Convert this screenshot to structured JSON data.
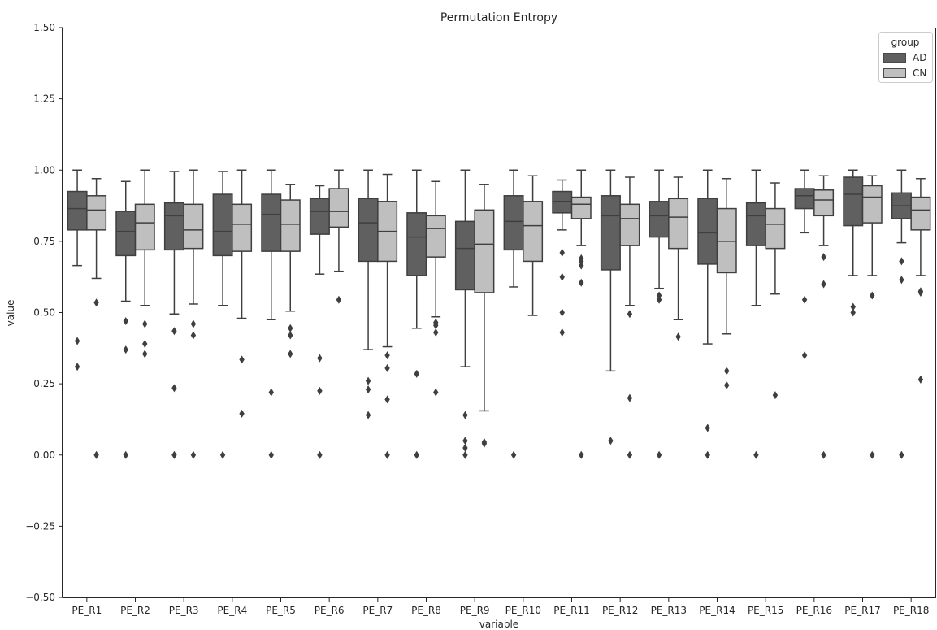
{
  "chart_data": {
    "type": "boxplot",
    "title": "Permutation Entropy",
    "xlabel": "variable",
    "ylabel": "value",
    "ylim": [
      -0.5,
      1.5
    ],
    "yticks": [
      "−0.50",
      "−0.25",
      "0.00",
      "0.25",
      "0.50",
      "0.75",
      "1.00",
      "1.25",
      "1.50"
    ],
    "ytick_values": [
      -0.5,
      -0.25,
      0,
      0.25,
      0.5,
      0.75,
      1.0,
      1.25,
      1.5
    ],
    "grid": false,
    "legend": {
      "title": "group",
      "placement": "top-right"
    },
    "categories": [
      "PE_R1",
      "PE_R2",
      "PE_R3",
      "PE_R4",
      "PE_R5",
      "PE_R6",
      "PE_R7",
      "PE_R8",
      "PE_R9",
      "PE_R10",
      "PE_R11",
      "PE_R12",
      "PE_R13",
      "PE_R14",
      "PE_R15",
      "PE_R16",
      "PE_R17",
      "PE_R18"
    ],
    "series": [
      {
        "name": "AD",
        "color": "#606060",
        "boxes": [
          {
            "q1": 0.79,
            "median": 0.865,
            "q3": 0.925,
            "whislo": 0.665,
            "whishi": 1.0,
            "fliers": [
              0.4,
              0.31
            ]
          },
          {
            "q1": 0.7,
            "median": 0.785,
            "q3": 0.855,
            "whislo": 0.54,
            "whishi": 0.96,
            "fliers": [
              0.47,
              0.37,
              0.0
            ]
          },
          {
            "q1": 0.72,
            "median": 0.84,
            "q3": 0.885,
            "whislo": 0.495,
            "whishi": 0.995,
            "fliers": [
              0.435,
              0.235,
              0.0
            ]
          },
          {
            "q1": 0.7,
            "median": 0.785,
            "q3": 0.915,
            "whislo": 0.525,
            "whishi": 0.995,
            "fliers": [
              0.0
            ]
          },
          {
            "q1": 0.715,
            "median": 0.845,
            "q3": 0.915,
            "whislo": 0.475,
            "whishi": 1.0,
            "fliers": [
              0.22,
              0.0
            ]
          },
          {
            "q1": 0.775,
            "median": 0.855,
            "q3": 0.9,
            "whislo": 0.635,
            "whishi": 0.945,
            "fliers": [
              0.34,
              0.225,
              0.0
            ]
          },
          {
            "q1": 0.68,
            "median": 0.815,
            "q3": 0.9,
            "whislo": 0.37,
            "whishi": 1.0,
            "fliers": [
              0.26,
              0.23,
              0.14
            ]
          },
          {
            "q1": 0.63,
            "median": 0.765,
            "q3": 0.85,
            "whislo": 0.445,
            "whishi": 1.0,
            "fliers": [
              0.285,
              0.0
            ]
          },
          {
            "q1": 0.58,
            "median": 0.725,
            "q3": 0.82,
            "whislo": 0.31,
            "whishi": 1.0,
            "fliers": [
              0.14,
              0.05,
              0.025,
              0.0
            ]
          },
          {
            "q1": 0.72,
            "median": 0.82,
            "q3": 0.91,
            "whislo": 0.59,
            "whishi": 1.0,
            "fliers": [
              0.0
            ]
          },
          {
            "q1": 0.85,
            "median": 0.89,
            "q3": 0.925,
            "whislo": 0.79,
            "whishi": 0.965,
            "fliers": [
              0.71,
              0.625,
              0.5,
              0.43
            ]
          },
          {
            "q1": 0.65,
            "median": 0.84,
            "q3": 0.91,
            "whislo": 0.295,
            "whishi": 1.0,
            "fliers": [
              0.05
            ]
          },
          {
            "q1": 0.765,
            "median": 0.84,
            "q3": 0.89,
            "whislo": 0.585,
            "whishi": 1.0,
            "fliers": [
              0.56,
              0.545,
              0.0
            ]
          },
          {
            "q1": 0.67,
            "median": 0.78,
            "q3": 0.9,
            "whislo": 0.39,
            "whishi": 1.0,
            "fliers": [
              0.095,
              0.0
            ]
          },
          {
            "q1": 0.735,
            "median": 0.84,
            "q3": 0.885,
            "whislo": 0.525,
            "whishi": 1.0,
            "fliers": [
              0.0
            ]
          },
          {
            "q1": 0.865,
            "median": 0.91,
            "q3": 0.935,
            "whislo": 0.78,
            "whishi": 1.0,
            "fliers": [
              0.545,
              0.35
            ]
          },
          {
            "q1": 0.805,
            "median": 0.915,
            "q3": 0.975,
            "whislo": 0.63,
            "whishi": 1.0,
            "fliers": [
              0.52,
              0.5
            ]
          },
          {
            "q1": 0.83,
            "median": 0.875,
            "q3": 0.92,
            "whislo": 0.745,
            "whishi": 1.0,
            "fliers": [
              0.68,
              0.615,
              0.0
            ]
          }
        ]
      },
      {
        "name": "CN",
        "color": "#bfbfbf",
        "boxes": [
          {
            "q1": 0.79,
            "median": 0.86,
            "q3": 0.91,
            "whislo": 0.62,
            "whishi": 0.97,
            "fliers": [
              0.535,
              0.0
            ]
          },
          {
            "q1": 0.72,
            "median": 0.815,
            "q3": 0.88,
            "whislo": 0.525,
            "whishi": 1.0,
            "fliers": [
              0.46,
              0.39,
              0.355
            ]
          },
          {
            "q1": 0.725,
            "median": 0.79,
            "q3": 0.88,
            "whislo": 0.53,
            "whishi": 1.0,
            "fliers": [
              0.46,
              0.42,
              0.0
            ]
          },
          {
            "q1": 0.715,
            "median": 0.81,
            "q3": 0.88,
            "whislo": 0.48,
            "whishi": 1.0,
            "fliers": [
              0.335,
              0.145
            ]
          },
          {
            "q1": 0.715,
            "median": 0.81,
            "q3": 0.895,
            "whislo": 0.505,
            "whishi": 0.95,
            "fliers": [
              0.445,
              0.42,
              0.355
            ]
          },
          {
            "q1": 0.8,
            "median": 0.855,
            "q3": 0.935,
            "whislo": 0.645,
            "whishi": 1.0,
            "fliers": [
              0.545
            ]
          },
          {
            "q1": 0.68,
            "median": 0.785,
            "q3": 0.89,
            "whislo": 0.38,
            "whishi": 0.985,
            "fliers": [
              0.35,
              0.305,
              0.195,
              0.0
            ]
          },
          {
            "q1": 0.695,
            "median": 0.795,
            "q3": 0.84,
            "whislo": 0.485,
            "whishi": 0.96,
            "fliers": [
              0.465,
              0.455,
              0.43,
              0.22
            ]
          },
          {
            "q1": 0.57,
            "median": 0.74,
            "q3": 0.86,
            "whislo": 0.155,
            "whishi": 0.95,
            "fliers": [
              0.045,
              0.04
            ]
          },
          {
            "q1": 0.68,
            "median": 0.805,
            "q3": 0.89,
            "whislo": 0.49,
            "whishi": 0.98,
            "fliers": []
          },
          {
            "q1": 0.83,
            "median": 0.88,
            "q3": 0.905,
            "whislo": 0.735,
            "whishi": 1.0,
            "fliers": [
              0.69,
              0.68,
              0.665,
              0.605,
              0.0
            ]
          },
          {
            "q1": 0.735,
            "median": 0.83,
            "q3": 0.88,
            "whislo": 0.525,
            "whishi": 0.975,
            "fliers": [
              0.495,
              0.2,
              0.0
            ]
          },
          {
            "q1": 0.725,
            "median": 0.835,
            "q3": 0.9,
            "whislo": 0.475,
            "whishi": 0.975,
            "fliers": [
              0.415
            ]
          },
          {
            "q1": 0.64,
            "median": 0.75,
            "q3": 0.865,
            "whislo": 0.425,
            "whishi": 0.97,
            "fliers": [
              0.295,
              0.245
            ]
          },
          {
            "q1": 0.725,
            "median": 0.81,
            "q3": 0.865,
            "whislo": 0.565,
            "whishi": 0.955,
            "fliers": [
              0.21
            ]
          },
          {
            "q1": 0.84,
            "median": 0.895,
            "q3": 0.93,
            "whislo": 0.735,
            "whishi": 0.98,
            "fliers": [
              0.695,
              0.6,
              0.0
            ]
          },
          {
            "q1": 0.815,
            "median": 0.905,
            "q3": 0.945,
            "whislo": 0.63,
            "whishi": 0.98,
            "fliers": [
              0.56,
              0.0
            ]
          },
          {
            "q1": 0.79,
            "median": 0.86,
            "q3": 0.905,
            "whislo": 0.63,
            "whishi": 0.97,
            "fliers": [
              0.575,
              0.57,
              0.265
            ]
          }
        ]
      }
    ]
  }
}
